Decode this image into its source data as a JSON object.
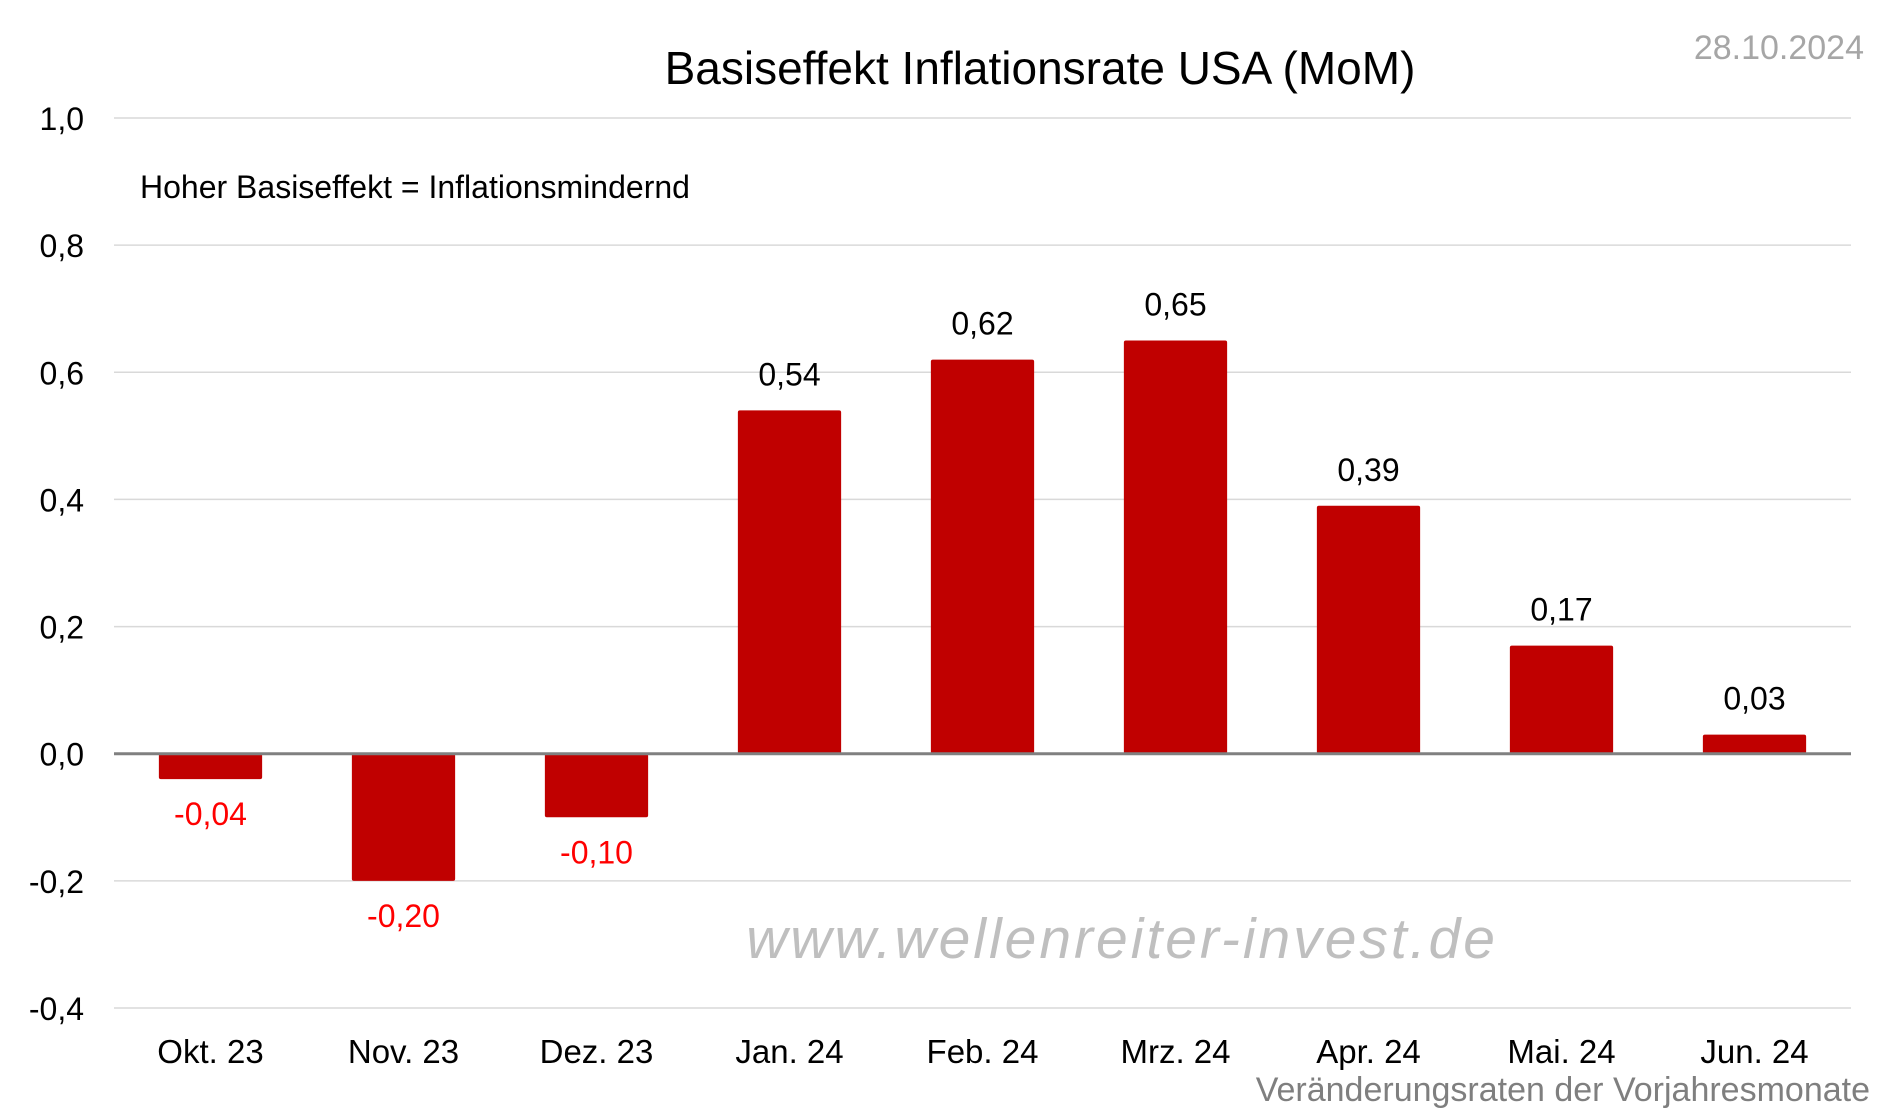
{
  "date_stamp": "28.10.2024",
  "watermark": "www.wellenreiter-invest.de",
  "chart_data": {
    "type": "bar",
    "title": "Basiseffekt Inflationsrate USA (MoM)",
    "annotation": "Hoher Basiseffekt = Inflationsmindernd",
    "footnote": "Veränderungsraten der Vorjahresmonate",
    "categories": [
      "Okt. 23",
      "Nov. 23",
      "Dez. 23",
      "Jan. 24",
      "Feb. 24",
      "Mrz. 24",
      "Apr. 24",
      "Mai. 24",
      "Jun. 24"
    ],
    "values": [
      -0.04,
      -0.2,
      -0.1,
      0.54,
      0.62,
      0.65,
      0.39,
      0.17,
      0.03
    ],
    "value_labels": [
      "-0,04",
      "-0,20",
      "-0,10",
      "0,54",
      "0,62",
      "0,65",
      "0,39",
      "0,17",
      "0,03"
    ],
    "ylim": [
      -0.4,
      1.0
    ],
    "y_ticks": [
      1.0,
      0.8,
      0.6,
      0.4,
      0.2,
      0.0,
      -0.2,
      -0.4
    ],
    "y_tick_labels": [
      "1,0",
      "0,8",
      "0,6",
      "0,4",
      "0,2",
      "0,0",
      "-0,2",
      "-0,4"
    ],
    "grid": true,
    "xlabel": "",
    "ylabel": "",
    "colors": {
      "bar": "#c00000",
      "negative_label": "#ff0000",
      "positive_label": "#000000",
      "grid": "#d9d9d9",
      "zero_line": "#808080",
      "date_stamp": "#a6a6a6",
      "footnote": "#7f7f7f",
      "watermark": "#bfbfbf"
    }
  }
}
